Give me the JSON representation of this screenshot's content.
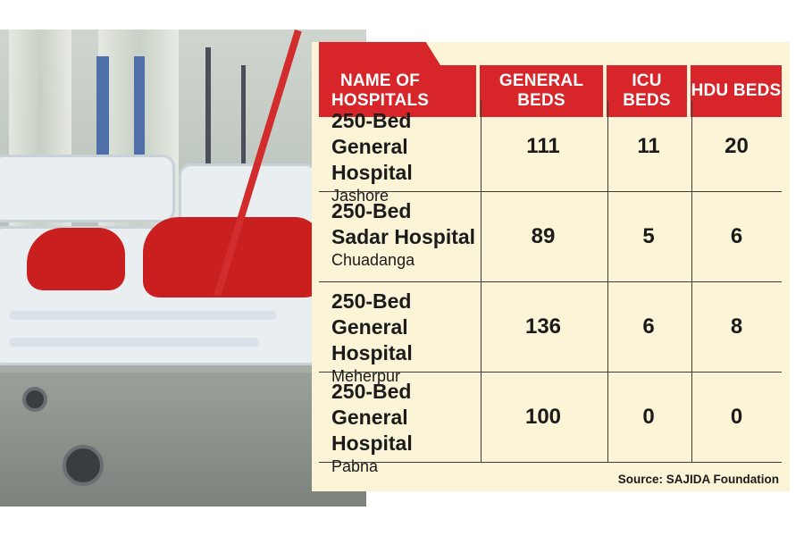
{
  "table": {
    "headers": {
      "name_line1": "NAME OF",
      "name_line2": "HOSPITALS",
      "general": "GENERAL BEDS",
      "icu": "ICU BEDS",
      "hdu": "HDU BEDS"
    },
    "rows": [
      {
        "line1": "250-Bed",
        "line2": "General Hospital",
        "location": "Jashore",
        "general": "111",
        "icu": "11",
        "hdu": "20"
      },
      {
        "line1": "250-Bed",
        "line2": "Sadar Hospital",
        "location": "Chuadanga",
        "general": "89",
        "icu": "5",
        "hdu": "6"
      },
      {
        "line1": "250-Bed",
        "line2": "General Hospital",
        "location": "Meherpur",
        "general": "136",
        "icu": "6",
        "hdu": "8"
      },
      {
        "line1": "250-Bed",
        "line2": "General Hospital",
        "location": "Pabna",
        "general": "100",
        "icu": "0",
        "hdu": "0"
      }
    ],
    "source": "Source: SAJIDA Foundation"
  },
  "colors": {
    "header_red": "#d8252a",
    "panel_bg": "#fbf4d6",
    "blanket_red": "#c91f1f"
  }
}
